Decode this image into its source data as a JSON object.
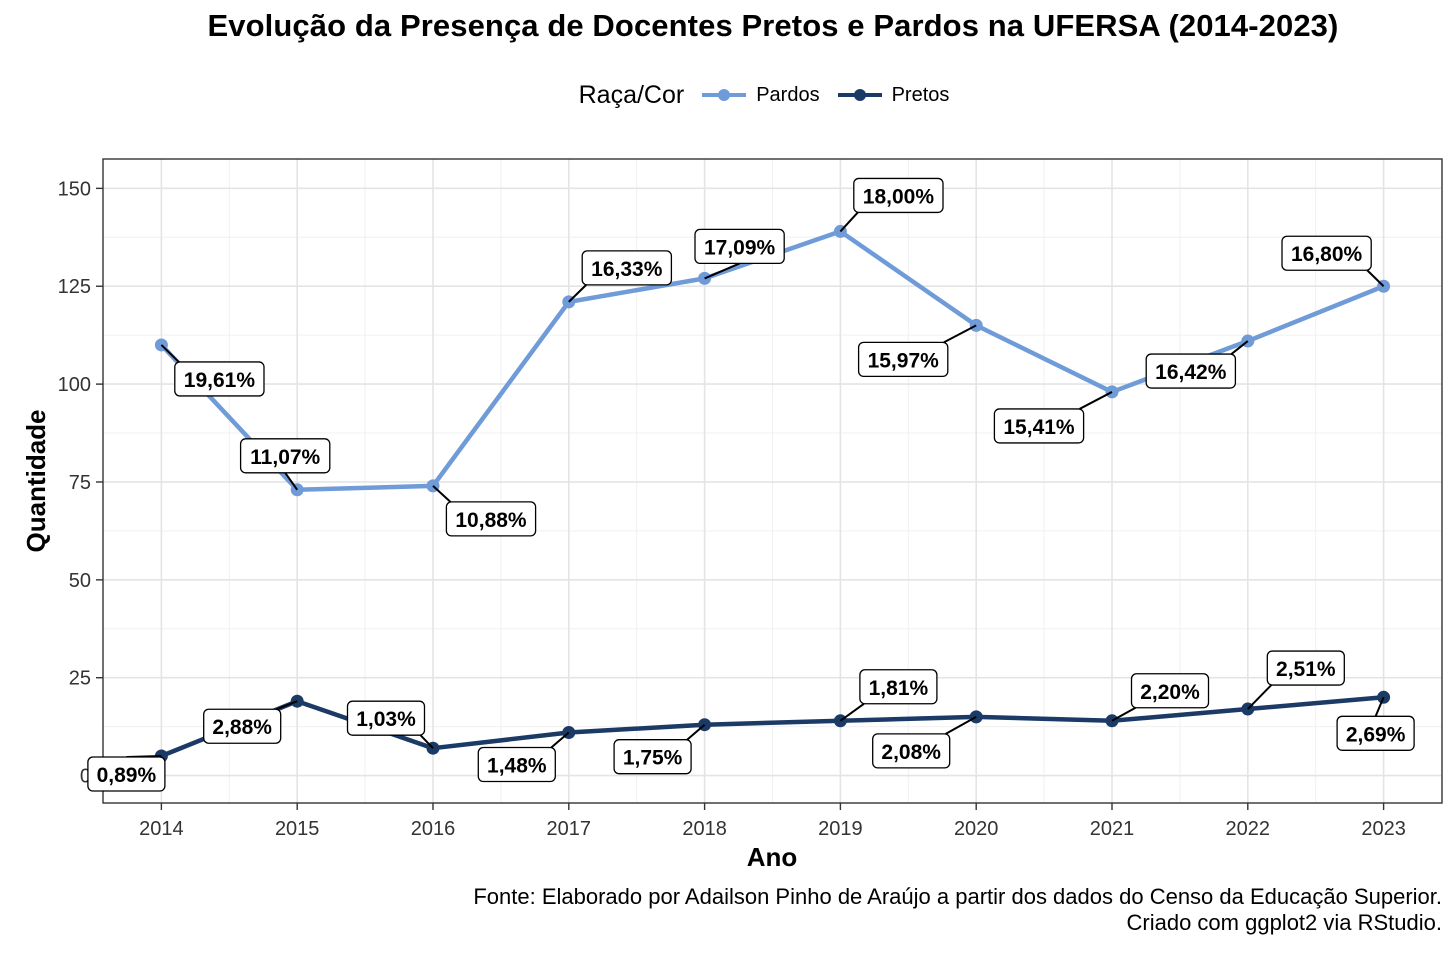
{
  "chart_data": {
    "type": "line",
    "title": "Evolução da Presença de Docentes Pretos e Pardos na UFERSA (2014-2023)",
    "xlabel": "Ano",
    "ylabel": "Quantidade",
    "x": [
      2014,
      2015,
      2016,
      2017,
      2018,
      2019,
      2020,
      2021,
      2022,
      2023
    ],
    "xlim": [
      2013.57,
      2023.43
    ],
    "ylim": [
      -7,
      157.5
    ],
    "yticks": [
      0,
      25,
      50,
      75,
      100,
      125,
      150
    ],
    "grid": true,
    "legend_title": "Raça/Cor",
    "legend_position": "top",
    "series": [
      {
        "name": "Pardos",
        "color": "#6f9bd8",
        "values": [
          110,
          73,
          74,
          121,
          127,
          139,
          115,
          98,
          111,
          125
        ],
        "labels": [
          "19,61%",
          "11,07%",
          "10,88%",
          "16,33%",
          "17,09%",
          "18,00%",
          "15,97%",
          "15,41%",
          "16,42%",
          "16,80%"
        ]
      },
      {
        "name": "Pretos",
        "color": "#1b3a66",
        "values": [
          5,
          19,
          7,
          11,
          13,
          14,
          15,
          14,
          17,
          20
        ],
        "labels": [
          "0,89%",
          "2,88%",
          "1,03%",
          "1,48%",
          "1,75%",
          "1,81%",
          "2,08%",
          "2,20%",
          "2,51%",
          "2,69%"
        ]
      }
    ],
    "caption": [
      "Fonte: Elaborado por Adailson Pinho de Araújo a partir dos dados do Censo da Educação Superior.",
      "Criado com ggplot2 via RStudio."
    ]
  }
}
